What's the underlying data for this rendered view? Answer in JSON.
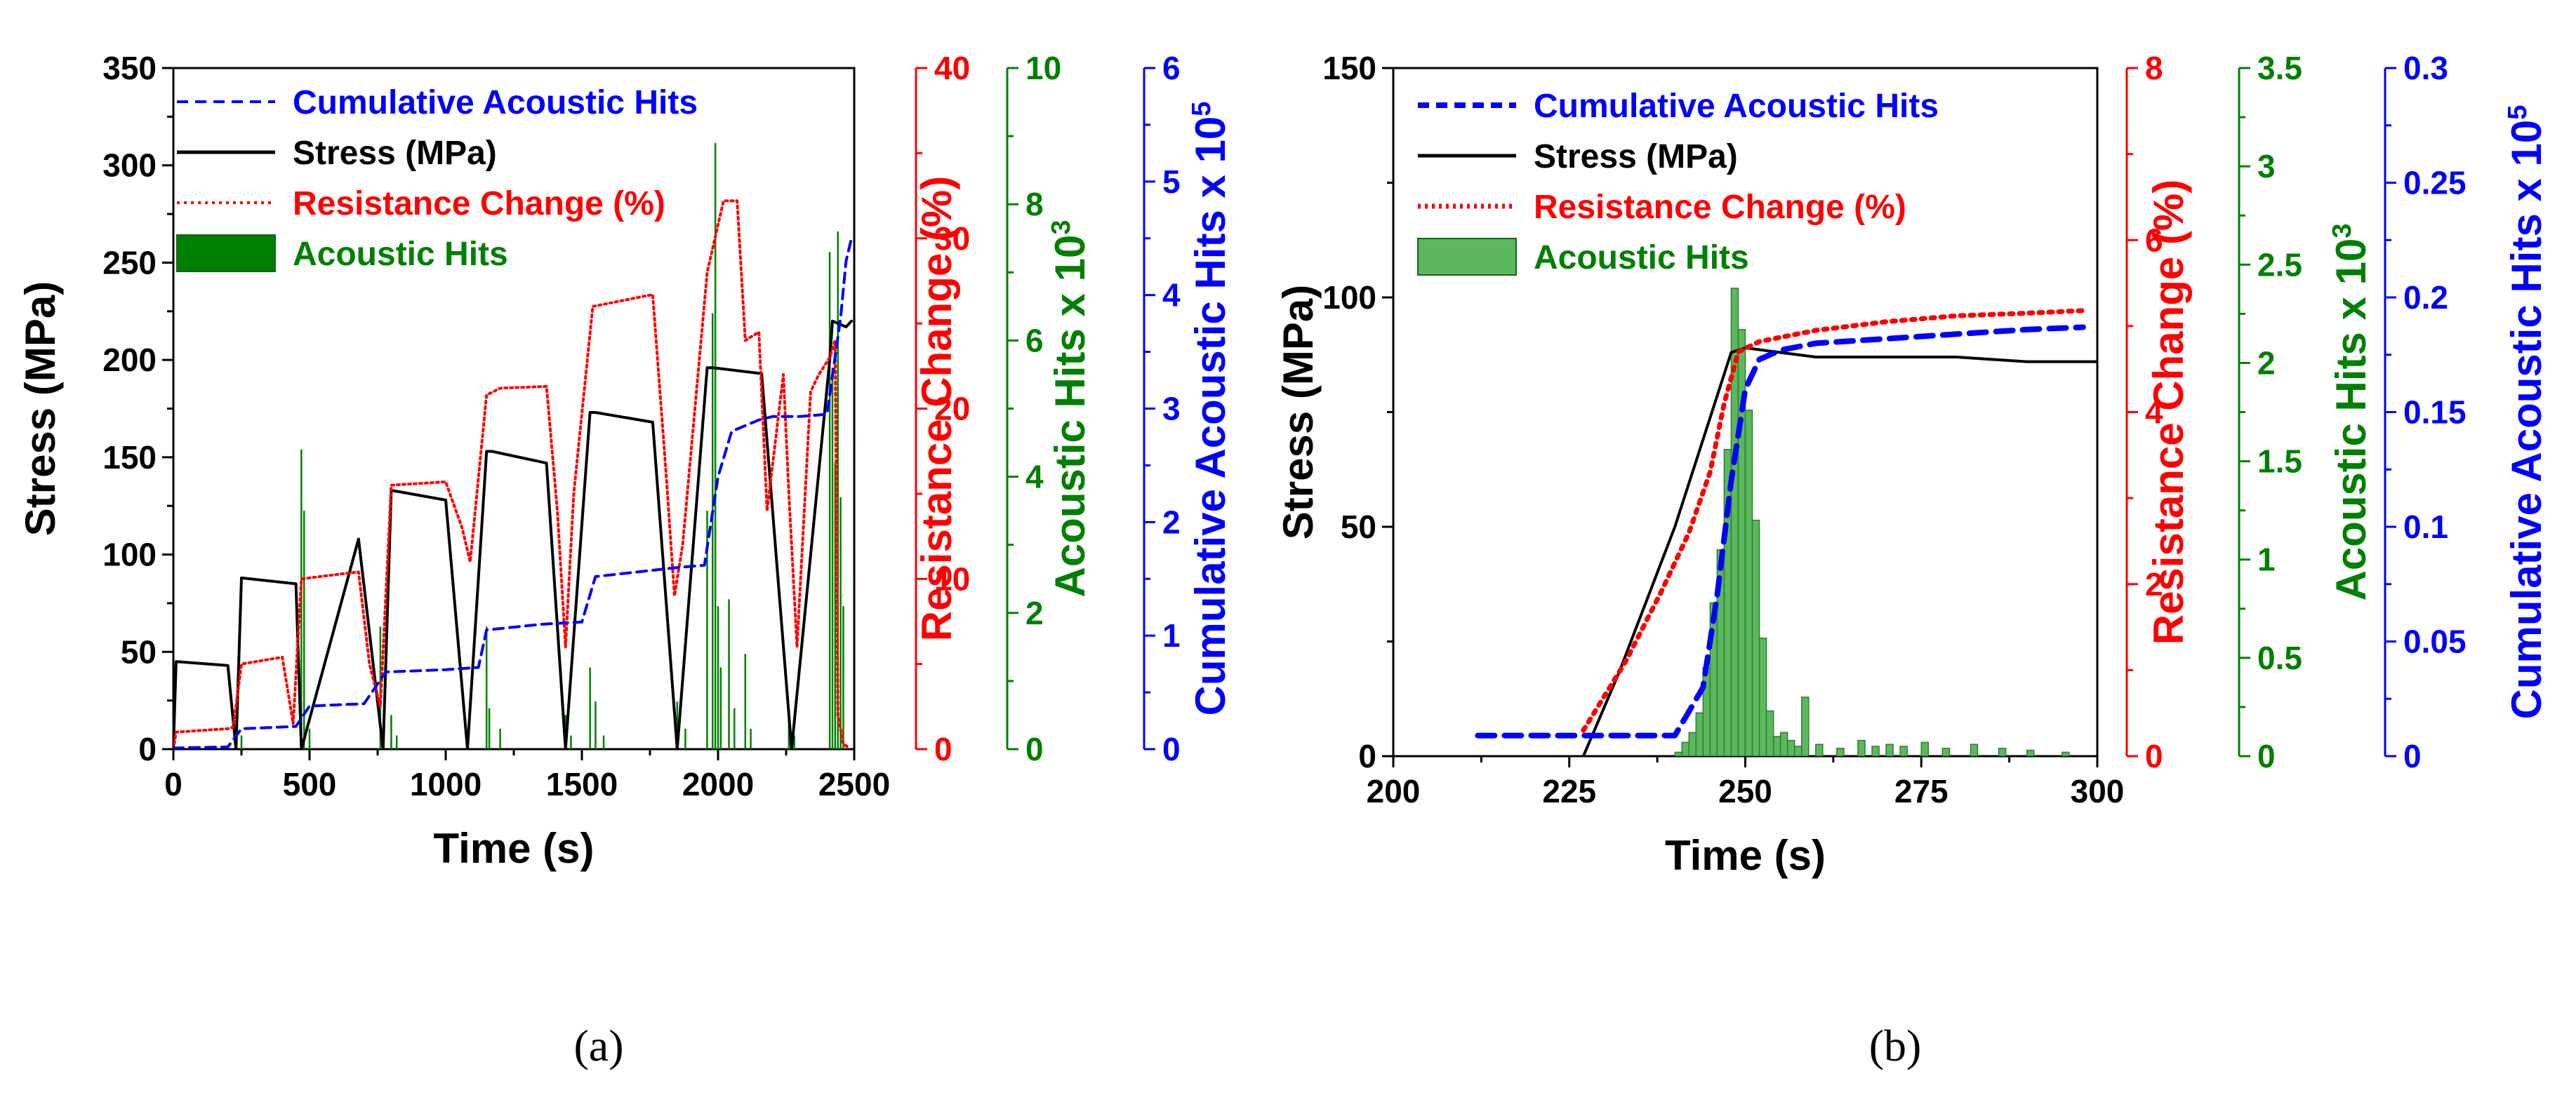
{
  "colors": {
    "stress": "#000000",
    "resistance": "#ff0000",
    "acoustic": "#008000",
    "acoustic_fill_b": "#5cb85c",
    "cumulative": "#0000ff"
  },
  "panels": [
    {
      "label": "(a)",
      "xlabel": "Time (s)",
      "legend": [
        {
          "text": "Cumulative Acoustic Hits",
          "color": "#0000ff",
          "style": "dashed"
        },
        {
          "text": "Stress (MPa)",
          "color": "#000000",
          "style": "solid"
        },
        {
          "text": "Resistance Change (%)",
          "color": "#ff0000",
          "style": "dotted"
        },
        {
          "text": "Acoustic Hits",
          "color": "#008000",
          "style": "box"
        }
      ]
    },
    {
      "label": "(b)",
      "xlabel": "Time (s)",
      "legend": [
        {
          "text": "Cumulative Acoustic Hits",
          "color": "#0000ff",
          "style": "dashed"
        },
        {
          "text": "Stress (MPa)",
          "color": "#000000",
          "style": "solid"
        },
        {
          "text": "Resistance Change (%)",
          "color": "#ff0000",
          "style": "dotted"
        },
        {
          "text": "Acoustic Hits",
          "color": "#5cb85c",
          "style": "box"
        }
      ]
    }
  ],
  "chart_data": [
    {
      "type": "line",
      "panel": "a",
      "title": "",
      "xlabel": "Time (s)",
      "xlim": [
        0,
        2500
      ],
      "xticks": [
        "0",
        "500",
        "1000",
        "1500",
        "2000",
        "2500"
      ],
      "axes": [
        {
          "label": "Stress (MPa)",
          "side": "left",
          "color": "#000000",
          "ylim": [
            0,
            350
          ],
          "ticks": [
            "0",
            "50",
            "100",
            "150",
            "200",
            "250",
            "300",
            "350"
          ]
        },
        {
          "label": "Resistance Change (%)",
          "side": "right-1",
          "color": "#ff0000",
          "ylim": [
            0,
            40
          ],
          "ticks": [
            "0",
            "10",
            "20",
            "30",
            "40"
          ]
        },
        {
          "label": "Acoustic Hits x 10",
          "label_exp": "3",
          "side": "right-2",
          "color": "#008000",
          "ylim": [
            0,
            10
          ],
          "ticks": [
            "0",
            "2",
            "4",
            "6",
            "8",
            "10"
          ]
        },
        {
          "label": "Cumulative Acoustic Hits x 10",
          "label_exp": "5",
          "side": "right-3",
          "color": "#0000ff",
          "ylim": [
            0,
            6
          ],
          "ticks": [
            "0",
            "1",
            "2",
            "3",
            "4",
            "5",
            "6"
          ]
        }
      ],
      "series": [
        {
          "name": "Stress (MPa)",
          "axis": 0,
          "style": "solid",
          "x": [
            0,
            10,
            200,
            230,
            250,
            450,
            470,
            680,
            770,
            800,
            1000,
            1080,
            1150,
            1170,
            1370,
            1440,
            1530,
            1550,
            1760,
            1850,
            1960,
            1980,
            2160,
            2270,
            2410,
            2420,
            2470,
            2490
          ],
          "y": [
            0,
            45,
            43,
            0,
            88,
            85,
            0,
            108,
            0,
            133,
            128,
            0,
            153,
            153,
            147,
            0,
            173,
            173,
            168,
            0,
            196,
            196,
            193,
            0,
            200,
            220,
            217,
            220
          ]
        },
        {
          "name": "Resistance Change (%)",
          "axis": 1,
          "style": "dotted",
          "x": [
            0,
            10,
            200,
            220,
            250,
            400,
            440,
            470,
            620,
            680,
            720,
            760,
            800,
            1000,
            1060,
            1090,
            1150,
            1200,
            1370,
            1410,
            1440,
            1470,
            1540,
            1760,
            1810,
            1840,
            1870,
            1960,
            2020,
            2070,
            2100,
            2150,
            2180,
            2240,
            2260,
            2290,
            2340,
            2370,
            2410,
            2430,
            2440,
            2460,
            2480
          ],
          "y": [
            0,
            1,
            1.2,
            1.3,
            5,
            5.4,
            1.5,
            10,
            10.3,
            10.4,
            5,
            2.5,
            15.5,
            15.7,
            13,
            11,
            20.8,
            21.2,
            21.3,
            14,
            6,
            15,
            26,
            26.7,
            16,
            9,
            12,
            28,
            32.2,
            32.2,
            24,
            24.5,
            14,
            22,
            15,
            6,
            21,
            22,
            23,
            24,
            2,
            0.3,
            0.1
          ]
        },
        {
          "name": "Cumulative Acoustic Hits",
          "axis": 3,
          "style": "dashed",
          "x": [
            0,
            200,
            250,
            450,
            500,
            700,
            780,
            1000,
            1120,
            1150,
            1350,
            1500,
            1550,
            1850,
            1950,
            2000,
            2050,
            2150,
            2200,
            2300,
            2400,
            2450,
            2470,
            2490
          ],
          "y": [
            0.01,
            0.02,
            0.18,
            0.2,
            0.38,
            0.4,
            0.68,
            0.7,
            0.72,
            1.05,
            1.1,
            1.12,
            1.52,
            1.6,
            1.62,
            2.4,
            2.8,
            2.9,
            2.93,
            2.93,
            2.95,
            3.8,
            4.3,
            4.5
          ]
        },
        {
          "name": "Acoustic Hits",
          "axis": 2,
          "style": "bars",
          "x": [
            250,
            470,
            480,
            500,
            760,
            800,
            820,
            1150,
            1160,
            1200,
            1440,
            1460,
            1530,
            1550,
            1580,
            1850,
            1880,
            1960,
            1980,
            1990,
            2000,
            2010,
            2040,
            2060,
            2100,
            2120,
            2260,
            2280,
            2410,
            2420,
            2430,
            2440,
            2450,
            2460
          ],
          "y": [
            0.2,
            4.4,
            3.5,
            0.3,
            1.8,
            0.5,
            0.2,
            1.8,
            0.6,
            0.3,
            0.5,
            0.2,
            1.2,
            0.7,
            0.2,
            0.7,
            0.3,
            3.5,
            6.4,
            8.9,
            2.1,
            1.2,
            2.2,
            0.6,
            1.4,
            0.3,
            0.5,
            0.2,
            7.3,
            5.6,
            4.2,
            7.6,
            3.7,
            2.1
          ]
        }
      ]
    },
    {
      "type": "line",
      "panel": "b",
      "title": "",
      "xlabel": "Time (s)",
      "xlim": [
        200,
        300
      ],
      "xticks": [
        "200",
        "225",
        "250",
        "275",
        "300"
      ],
      "axes": [
        {
          "label": "Stress (MPa)",
          "side": "left",
          "color": "#000000",
          "ylim": [
            0,
            150
          ],
          "ticks": [
            "0",
            "50",
            "100",
            "150"
          ]
        },
        {
          "label": "Resistance Change (%)",
          "side": "right-1",
          "color": "#ff0000",
          "ylim": [
            0,
            8
          ],
          "ticks": [
            "0",
            "2",
            "4",
            "6",
            "8"
          ]
        },
        {
          "label": "Acoustic Hits x 10",
          "label_exp": "3",
          "side": "right-2",
          "color": "#008000",
          "ylim": [
            0,
            3.5
          ],
          "ticks": [
            "0",
            "0.5",
            "1",
            "1.5",
            "2",
            "2.5",
            "3",
            "3.5"
          ]
        },
        {
          "label": "Cumulative Acoustic Hits x 10",
          "label_exp": "5",
          "side": "right-3",
          "color": "#0000ff",
          "ylim": [
            0,
            0.3
          ],
          "ticks": [
            "0",
            "0.05",
            "0.1",
            "0.15",
            "0.2",
            "0.25",
            "0.3"
          ]
        }
      ],
      "series": [
        {
          "name": "Stress (MPa)",
          "axis": 0,
          "style": "solid",
          "x": [
            227,
            232,
            240,
            248,
            250,
            255,
            260,
            270,
            280,
            290,
            300
          ],
          "y": [
            0,
            18,
            50,
            88,
            89,
            88,
            87,
            87,
            87,
            86,
            86
          ]
        },
        {
          "name": "Resistance Change (%)",
          "axis": 1,
          "style": "dotted",
          "x": [
            227,
            233,
            238,
            242,
            245,
            247,
            249,
            252,
            260,
            270,
            280,
            290,
            298
          ],
          "y": [
            0.3,
            1.1,
            1.9,
            2.6,
            3.3,
            4.1,
            4.7,
            4.82,
            4.95,
            5.05,
            5.12,
            5.15,
            5.18
          ]
        },
        {
          "name": "Cumulative Acoustic Hits",
          "axis": 3,
          "style": "dashed",
          "x": [
            212,
            227,
            240,
            244,
            246,
            248,
            250,
            252,
            255,
            260,
            270,
            280,
            290,
            298
          ],
          "y": [
            0.009,
            0.009,
            0.009,
            0.03,
            0.07,
            0.12,
            0.16,
            0.173,
            0.177,
            0.18,
            0.182,
            0.184,
            0.186,
            0.187
          ]
        },
        {
          "name": "Acoustic Hits",
          "axis": 2,
          "style": "histogram",
          "bin_width": 1,
          "x": [
            240,
            241,
            242,
            243,
            244,
            245,
            246,
            247,
            248,
            249,
            250,
            251,
            252,
            253,
            254,
            255,
            256,
            257,
            258,
            260,
            263,
            266,
            268,
            270,
            272,
            275,
            278,
            282,
            286,
            290,
            295
          ],
          "y": [
            0.02,
            0.07,
            0.12,
            0.22,
            0.45,
            0.78,
            1.05,
            1.56,
            2.38,
            2.17,
            1.76,
            1.2,
            0.6,
            0.23,
            0.1,
            0.12,
            0.08,
            0.05,
            0.3,
            0.06,
            0.04,
            0.08,
            0.05,
            0.06,
            0.05,
            0.07,
            0.04,
            0.06,
            0.04,
            0.03,
            0.02
          ]
        }
      ]
    }
  ]
}
